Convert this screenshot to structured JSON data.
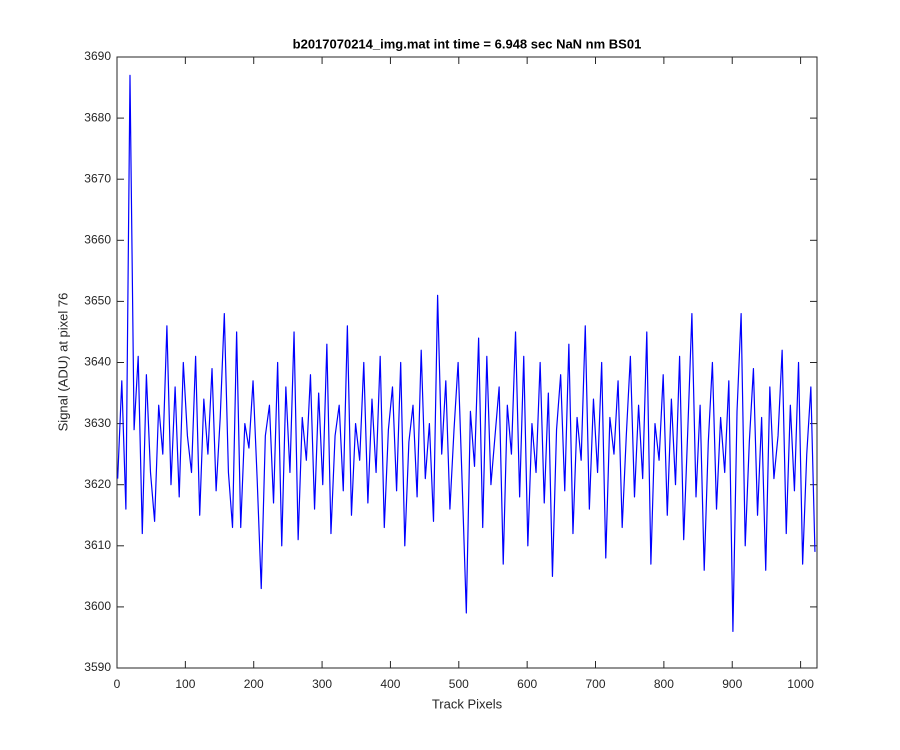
{
  "chart_data": {
    "type": "line",
    "title": "b2017070214_img.mat int time = 6.948 sec  NaN nm BS01",
    "xlabel": "Track Pixels",
    "ylabel": "Signal (ADU) at pixel 76",
    "color": "#0000ff",
    "xlim": [
      0,
      1024
    ],
    "ylim": [
      3590,
      3690
    ],
    "xticks": [
      0,
      100,
      200,
      300,
      400,
      500,
      600,
      700,
      800,
      900,
      1000
    ],
    "yticks": [
      3590,
      3600,
      3610,
      3620,
      3630,
      3640,
      3650,
      3660,
      3670,
      3680,
      3690
    ],
    "x": [
      1,
      7,
      13,
      19,
      25,
      31,
      37,
      43,
      49,
      55,
      61,
      67,
      73,
      79,
      85,
      91,
      97,
      103,
      109,
      115,
      121,
      127,
      133,
      139,
      145,
      151,
      157,
      163,
      169,
      175,
      181,
      187,
      193,
      199,
      205,
      211,
      217,
      223,
      229,
      235,
      241,
      247,
      253,
      259,
      265,
      271,
      277,
      283,
      289,
      295,
      301,
      307,
      313,
      319,
      325,
      331,
      337,
      343,
      349,
      355,
      361,
      367,
      373,
      379,
      385,
      391,
      397,
      403,
      409,
      415,
      421,
      427,
      433,
      439,
      445,
      451,
      457,
      463,
      469,
      475,
      481,
      487,
      493,
      499,
      505,
      511,
      517,
      523,
      529,
      535,
      541,
      547,
      553,
      559,
      565,
      571,
      577,
      583,
      589,
      595,
      601,
      607,
      613,
      619,
      625,
      631,
      637,
      643,
      649,
      655,
      661,
      667,
      673,
      679,
      685,
      691,
      697,
      703,
      709,
      715,
      721,
      727,
      733,
      739,
      745,
      751,
      757,
      763,
      769,
      775,
      781,
      787,
      793,
      799,
      805,
      811,
      817,
      823,
      829,
      835,
      841,
      847,
      853,
      859,
      865,
      871,
      877,
      883,
      889,
      895,
      901,
      907,
      913,
      919,
      925,
      931,
      937,
      943,
      949,
      955,
      961,
      967,
      973,
      979,
      985,
      991,
      997,
      1003,
      1009,
      1015,
      1021
    ],
    "values": [
      3621,
      3637,
      3616,
      3687,
      3629,
      3641,
      3612,
      3638,
      3622,
      3614,
      3633,
      3625,
      3646,
      3620,
      3636,
      3618,
      3640,
      3628,
      3622,
      3641,
      3615,
      3634,
      3625,
      3639,
      3619,
      3631,
      3648,
      3622,
      3613,
      3645,
      3613,
      3630,
      3626,
      3637,
      3621,
      3603,
      3628,
      3633,
      3617,
      3640,
      3610,
      3636,
      3622,
      3645,
      3611,
      3631,
      3624,
      3638,
      3616,
      3635,
      3620,
      3643,
      3612,
      3628,
      3633,
      3619,
      3646,
      3615,
      3630,
      3624,
      3640,
      3617,
      3634,
      3622,
      3641,
      3613,
      3629,
      3636,
      3619,
      3640,
      3610,
      3627,
      3633,
      3618,
      3642,
      3621,
      3630,
      3614,
      3651,
      3625,
      3637,
      3616,
      3629,
      3640,
      3620,
      3599,
      3632,
      3623,
      3644,
      3613,
      3641,
      3620,
      3628,
      3636,
      3607,
      3633,
      3625,
      3645,
      3618,
      3641,
      3610,
      3630,
      3622,
      3640,
      3617,
      3635,
      3605,
      3629,
      3638,
      3619,
      3643,
      3612,
      3631,
      3624,
      3646,
      3616,
      3634,
      3622,
      3640,
      3608,
      3631,
      3625,
      3637,
      3613,
      3628,
      3641,
      3618,
      3633,
      3621,
      3645,
      3607,
      3630,
      3624,
      3638,
      3615,
      3634,
      3620,
      3641,
      3611,
      3629,
      3648,
      3618,
      3633,
      3606,
      3627,
      3640,
      3616,
      3631,
      3622,
      3637,
      3596,
      3632,
      3648,
      3610,
      3627,
      3639,
      3615,
      3631,
      3606,
      3636,
      3621,
      3628,
      3642,
      3612,
      3633,
      3619,
      3640,
      3607,
      3625,
      3636,
      3609
    ]
  }
}
